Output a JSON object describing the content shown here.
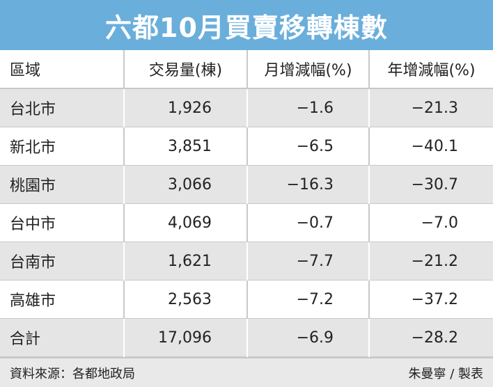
{
  "header": {
    "title": "六都10月買賣移轉棟數"
  },
  "table": {
    "columns": [
      "區域",
      "交易量(棟)",
      "月增減幅(%)",
      "年增減幅(%)"
    ],
    "rows": [
      [
        "台北市",
        "1,926",
        "−1.6",
        "−21.3"
      ],
      [
        "新北市",
        "3,851",
        "−6.5",
        "−40.1"
      ],
      [
        "桃園市",
        "3,066",
        "−16.3",
        "−30.7"
      ],
      [
        "台中市",
        "4,069",
        "−0.7",
        "−7.0"
      ],
      [
        "台南市",
        "1,621",
        "−7.7",
        "−21.2"
      ],
      [
        "高雄市",
        "2,563",
        "−7.2",
        "−37.2"
      ],
      [
        "合計",
        "17,096",
        "−6.9",
        "−28.2"
      ]
    ]
  },
  "footer": {
    "source": "資料來源：各都地政局",
    "author": "朱曼寧 / 製表"
  }
}
